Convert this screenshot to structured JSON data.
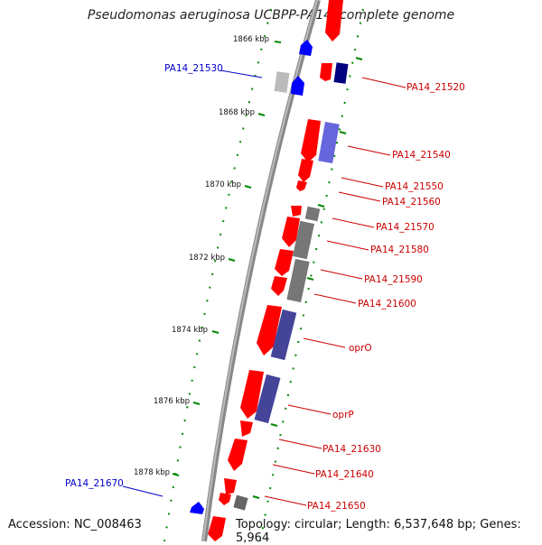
{
  "title": "Pseudomonas aeruginosa UCBPP-PA14, complete genome",
  "accession": "Accession: NC_008463",
  "topology": "Topology: circular; Length: 6,537,648 bp; Genes: 5,964",
  "colors": {
    "forward_cds": "#ff0000",
    "reverse_cds_blue": "#0000ff",
    "navy": "#000080",
    "slate": "#5555aa",
    "gray": "#777777",
    "label_red": "#cc0000",
    "label_blue": "#0000cc",
    "tick_green": "#008800"
  },
  "ticks": [
    {
      "label": "1866 kbp"
    },
    {
      "label": "1868 kbp"
    },
    {
      "label": "1870 kbp"
    },
    {
      "label": "1872 kbp"
    },
    {
      "label": "1874 kbp"
    },
    {
      "label": "1876 kbp"
    },
    {
      "label": "1878 kbp"
    }
  ],
  "gene_labels": [
    {
      "text": "PA14_21530",
      "side": "left"
    },
    {
      "text": "PA14_21520",
      "side": "right"
    },
    {
      "text": "PA14_21540",
      "side": "right"
    },
    {
      "text": "PA14_21550",
      "side": "right"
    },
    {
      "text": "PA14_21560",
      "side": "right"
    },
    {
      "text": "PA14_21570",
      "side": "right"
    },
    {
      "text": "PA14_21580",
      "side": "right"
    },
    {
      "text": "PA14_21590",
      "side": "right"
    },
    {
      "text": "PA14_21600",
      "side": "right"
    },
    {
      "text": "oprO",
      "side": "right"
    },
    {
      "text": "oprP",
      "side": "right"
    },
    {
      "text": "PA14_21630",
      "side": "right"
    },
    {
      "text": "PA14_21640",
      "side": "right"
    },
    {
      "text": "PA14_21650",
      "side": "right"
    },
    {
      "text": "PA14_21670",
      "side": "left"
    }
  ]
}
